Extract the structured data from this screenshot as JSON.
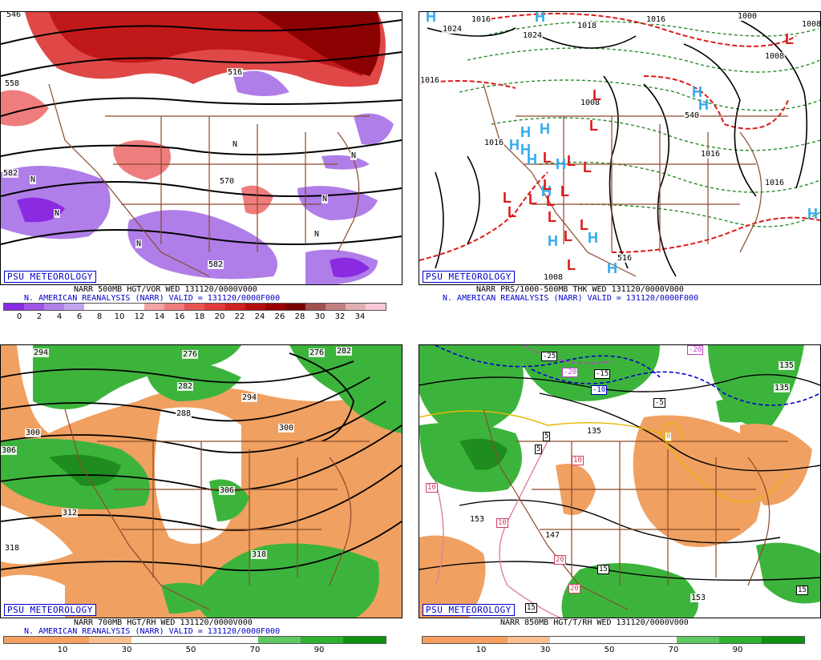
{
  "badge": "PSU METEOROLOGY",
  "panels": {
    "p500": {
      "caption1": "NARR 500MB HGT/VOR WED 131120/0000V000",
      "caption2": "N. AMERICAN REANALYSIS (NARR) VALID = 131120/0000F000",
      "scale_labels": [
        "0",
        "2",
        "4",
        "6",
        "8",
        "10",
        "12",
        "14",
        "16",
        "18",
        "20",
        "22",
        "24",
        "26",
        "28",
        "30",
        "32",
        "34"
      ],
      "scale_colors": [
        "#8a2be2",
        "#9f55e5",
        "#b07ee8",
        "#c3a3ee",
        "#ffffff",
        "#ffffff",
        "#ffffff",
        "#f4a3a3",
        "#ef7d7d",
        "#e85454",
        "#e03a3a",
        "#d02020",
        "#b31010",
        "#990000",
        "#7a0000",
        "#a05050",
        "#c08080",
        "#e0b0b0",
        "#f8c8d8"
      ],
      "map_labels": [
        "546",
        "558",
        "582",
        "516",
        "570",
        "N",
        "N",
        "N",
        "N",
        "N",
        "N",
        "N",
        "582"
      ]
    },
    "prs": {
      "caption1": "NARR PRS/1000-500MB THK WED 131120/0000V000",
      "caption2": "N. AMERICAN REANALYSIS (NARR) VALID = 131120/0000F000",
      "map_labels": [
        "1024",
        "1016",
        "1024",
        "1018",
        "1016",
        "1000",
        "1008",
        "1008",
        "1016",
        "1016",
        "1016",
        "1008",
        "1008",
        "1016",
        "540",
        "516"
      ],
      "highs": [
        "H",
        "H",
        "H",
        "H",
        "H",
        "H",
        "H",
        "H",
        "H",
        "H",
        "H",
        "H",
        "H",
        "H",
        "H"
      ],
      "lows": [
        "L",
        "L",
        "L",
        "L",
        "L",
        "L",
        "L",
        "L",
        "L",
        "L",
        "L",
        "L",
        "L",
        "L",
        "L",
        "L"
      ]
    },
    "p700": {
      "caption1": "NARR 700MB HGT/RH WED 131120/0000V000",
      "caption2": "N. AMERICAN REANALYSIS (NARR) VALID = 131120/0000F000",
      "scale_labels": [
        "10",
        "30",
        "50",
        "70",
        "90"
      ],
      "map_labels": [
        "294",
        "276",
        "276",
        "282",
        "282",
        "288",
        "294",
        "300",
        "300",
        "306",
        "306",
        "312",
        "318",
        "318"
      ]
    },
    "p850": {
      "caption1": "NARR 850MB HGT/T/RH WED 131120/0000V000",
      "scale_labels": [
        "10",
        "30",
        "50",
        "70",
        "90"
      ],
      "map_labels": [
        "-25",
        "-20",
        "-20",
        "-15",
        "-10",
        "-5",
        "135",
        "135",
        "5",
        "5",
        "0",
        "153",
        "147",
        "153",
        "10",
        "10",
        "10",
        "20",
        "20",
        "15",
        "15",
        "135",
        "15"
      ]
    }
  },
  "colors": {
    "dry": "#f0a060",
    "moist": "#3cb43c",
    "very_moist": "#1e8c1e",
    "land_border": "#8b4a2b",
    "badge_blue": "#0000c8",
    "high_blue": "#33aaee",
    "low_red": "#dd1a1a"
  },
  "rh_scale_colors": [
    "#f5a060",
    "#f5a060",
    "#f8c090",
    "#ffffff",
    "#ffffff",
    "#ffffff",
    "#60c860",
    "#30b030",
    "#109010"
  ]
}
